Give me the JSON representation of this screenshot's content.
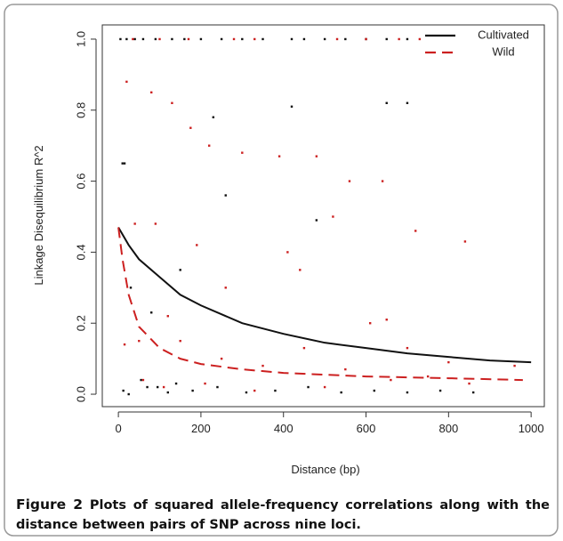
{
  "chart_data": {
    "type": "scatter",
    "x_label": "Distance (bp)",
    "y_label": "Linkage Disequilibrium R^2",
    "xlim": [
      -39,
      1032
    ],
    "ylim": [
      -0.035,
      1.04
    ],
    "xticks": [
      0,
      200,
      400,
      600,
      800,
      1000
    ],
    "yticks": [
      {
        "value": 0,
        "label": "0.0"
      },
      0.2,
      0.4,
      0.6,
      0.8,
      {
        "value": 1,
        "label": "1.0"
      }
    ],
    "legend": "top-right",
    "series": [
      {
        "name": "Cultivated",
        "color": "#111111",
        "style": "solid",
        "x": [
          0,
          25,
          50,
          100,
          150,
          200,
          300,
          400,
          500,
          600,
          700,
          800,
          900,
          1000
        ],
        "values": [
          0.47,
          0.42,
          0.38,
          0.33,
          0.28,
          0.25,
          0.2,
          0.17,
          0.145,
          0.13,
          0.115,
          0.105,
          0.095,
          0.09
        ],
        "points": {
          "x": [
            5,
            20,
            40,
            60,
            90,
            130,
            160,
            200,
            250,
            300,
            350,
            420,
            450,
            500,
            550,
            600,
            650,
            700,
            10,
            15,
            30,
            80,
            150,
            260,
            230,
            700,
            480,
            650,
            12,
            70,
            120,
            180,
            240,
            310,
            380,
            460,
            540,
            620,
            700,
            780,
            860,
            140,
            420,
            25,
            55,
            95
          ],
          "values": [
            1,
            1,
            1,
            1,
            1,
            1,
            1,
            1,
            1,
            1,
            1,
            1,
            1,
            1,
            1,
            1,
            1,
            1,
            0.65,
            0.65,
            0.3,
            0.23,
            0.35,
            0.56,
            0.78,
            0.82,
            0.49,
            0.82,
            0.01,
            0.02,
            0.005,
            0.01,
            0.02,
            0.005,
            0.01,
            0.02,
            0.005,
            0.01,
            0.005,
            0.01,
            0.005,
            0.03,
            0.81,
            0.0,
            0.04,
            0.02
          ]
        }
      },
      {
        "name": "Wild",
        "color": "#cc2020",
        "style": "dashed",
        "x": [
          0,
          10,
          25,
          50,
          100,
          150,
          200,
          300,
          400,
          600,
          800,
          980
        ],
        "values": [
          0.47,
          0.38,
          0.28,
          0.19,
          0.13,
          0.1,
          0.085,
          0.07,
          0.06,
          0.05,
          0.045,
          0.04
        ],
        "points": {
          "x": [
            35,
            100,
            170,
            280,
            330,
            530,
            600,
            680,
            730,
            20,
            80,
            130,
            175,
            220,
            300,
            390,
            480,
            560,
            640,
            720,
            840,
            40,
            90,
            190,
            260,
            440,
            520,
            610,
            700,
            800,
            50,
            150,
            250,
            350,
            450,
            550,
            650,
            750,
            850,
            960,
            60,
            110,
            210,
            330,
            500,
            660,
            15,
            120,
            410
          ],
          "values": [
            1,
            1,
            1,
            1,
            1,
            1,
            1,
            1,
            1,
            0.88,
            0.85,
            0.82,
            0.75,
            0.7,
            0.68,
            0.67,
            0.67,
            0.6,
            0.6,
            0.46,
            0.43,
            0.48,
            0.48,
            0.42,
            0.3,
            0.35,
            0.5,
            0.2,
            0.13,
            0.09,
            0.15,
            0.15,
            0.1,
            0.08,
            0.13,
            0.07,
            0.21,
            0.05,
            0.03,
            0.08,
            0.04,
            0.02,
            0.03,
            0.01,
            0.02,
            0.04,
            0.14,
            0.22,
            0.4
          ]
        }
      }
    ]
  },
  "caption": {
    "label": "Figure 2",
    "text": "Plots of squared allele-frequency correlations along with the distance between pairs of SNP across nine loci."
  }
}
